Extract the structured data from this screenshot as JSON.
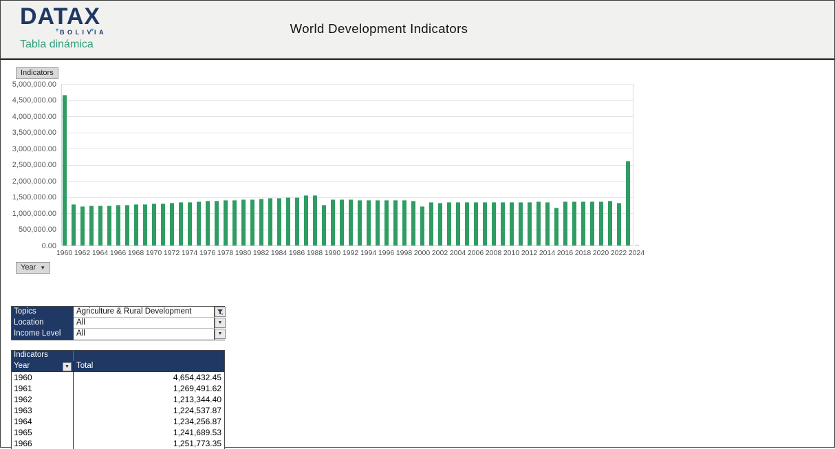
{
  "header": {
    "logo_text": "DATAX",
    "logo_sub": "BOLIVIA",
    "logo_tagline": "Tabla dinámica",
    "title": "World Development Indicators"
  },
  "chart": {
    "indicators_button_label": "Indicators",
    "year_button_label": "Year",
    "bar_color": "#2f9c63"
  },
  "chart_data": {
    "type": "bar",
    "series_name": "Total",
    "xlabel": "Year",
    "ylabel": "",
    "ylim": [
      0,
      5000000
    ],
    "grid": "horizontal",
    "legend": "none",
    "y_ticks": [
      "5,000,000.00",
      "4,500,000.00",
      "4,000,000.00",
      "3,500,000.00",
      "3,000,000.00",
      "2,500,000.00",
      "2,000,000.00",
      "1,500,000.00",
      "1,000,000.00",
      "500,000.00",
      "0.00"
    ],
    "x_tick_labels": [
      1960,
      1962,
      1964,
      1966,
      1968,
      1970,
      1972,
      1974,
      1976,
      1978,
      1980,
      1982,
      1984,
      1986,
      1988,
      1990,
      1992,
      1994,
      1996,
      1998,
      2000,
      2002,
      2004,
      2006,
      2008,
      2010,
      2012,
      2014,
      2016,
      2018,
      2020,
      2022,
      2024
    ],
    "x": [
      1960,
      1961,
      1962,
      1963,
      1964,
      1965,
      1966,
      1967,
      1968,
      1969,
      1970,
      1971,
      1972,
      1973,
      1974,
      1975,
      1976,
      1977,
      1978,
      1979,
      1980,
      1981,
      1982,
      1983,
      1984,
      1985,
      1986,
      1987,
      1988,
      1989,
      1990,
      1991,
      1992,
      1993,
      1994,
      1995,
      1996,
      1997,
      1998,
      1999,
      2000,
      2001,
      2002,
      2003,
      2004,
      2005,
      2006,
      2007,
      2008,
      2009,
      2010,
      2011,
      2012,
      2013,
      2014,
      2015,
      2016,
      2017,
      2018,
      2019,
      2020,
      2021,
      2022,
      2023,
      2024
    ],
    "values": [
      4654432,
      1269492,
      1213344,
      1224538,
      1234257,
      1241690,
      1251773,
      1262000,
      1276000,
      1288000,
      1296000,
      1306000,
      1318000,
      1338000,
      1352000,
      1364000,
      1378000,
      1392000,
      1402000,
      1412000,
      1420000,
      1432000,
      1448000,
      1462000,
      1478000,
      1484000,
      1490000,
      1562000,
      1556000,
      1248000,
      1430000,
      1428000,
      1420000,
      1412000,
      1408000,
      1404000,
      1402000,
      1400000,
      1398000,
      1394000,
      1205000,
      1332000,
      1328000,
      1336000,
      1340000,
      1342000,
      1340000,
      1338000,
      1344000,
      1342000,
      1346000,
      1350000,
      1348000,
      1354000,
      1352000,
      1165000,
      1356000,
      1356000,
      1358000,
      1360000,
      1362000,
      1382000,
      1312000,
      2615000,
      18000
    ]
  },
  "filters": {
    "rows": [
      {
        "label": "Topics",
        "value": "Agriculture & Rural Development",
        "icon": "filter-funnel-icon"
      },
      {
        "label": "Location",
        "value": "All",
        "icon": "dropdown-icon"
      },
      {
        "label": "Income Level",
        "value": "All",
        "icon": "dropdown-icon"
      }
    ]
  },
  "pivot": {
    "corner_label": "Indicators",
    "row_field_label": "Year",
    "value_col_label": "Total",
    "rows": [
      {
        "year": "1960",
        "total": "4,654,432.45"
      },
      {
        "year": "1961",
        "total": "1,269,491.62"
      },
      {
        "year": "1962",
        "total": "1,213,344.40"
      },
      {
        "year": "1963",
        "total": "1,224,537.87"
      },
      {
        "year": "1964",
        "total": "1,234,256.87"
      },
      {
        "year": "1965",
        "total": "1,241,689.53"
      },
      {
        "year": "1966",
        "total": "1,251,773.35"
      }
    ]
  },
  "colors": {
    "navy_header": "#1F3864",
    "bar_green": "#2f9c63",
    "tagline_teal": "#2E9E7A",
    "header_bg": "#f1f1f0"
  }
}
